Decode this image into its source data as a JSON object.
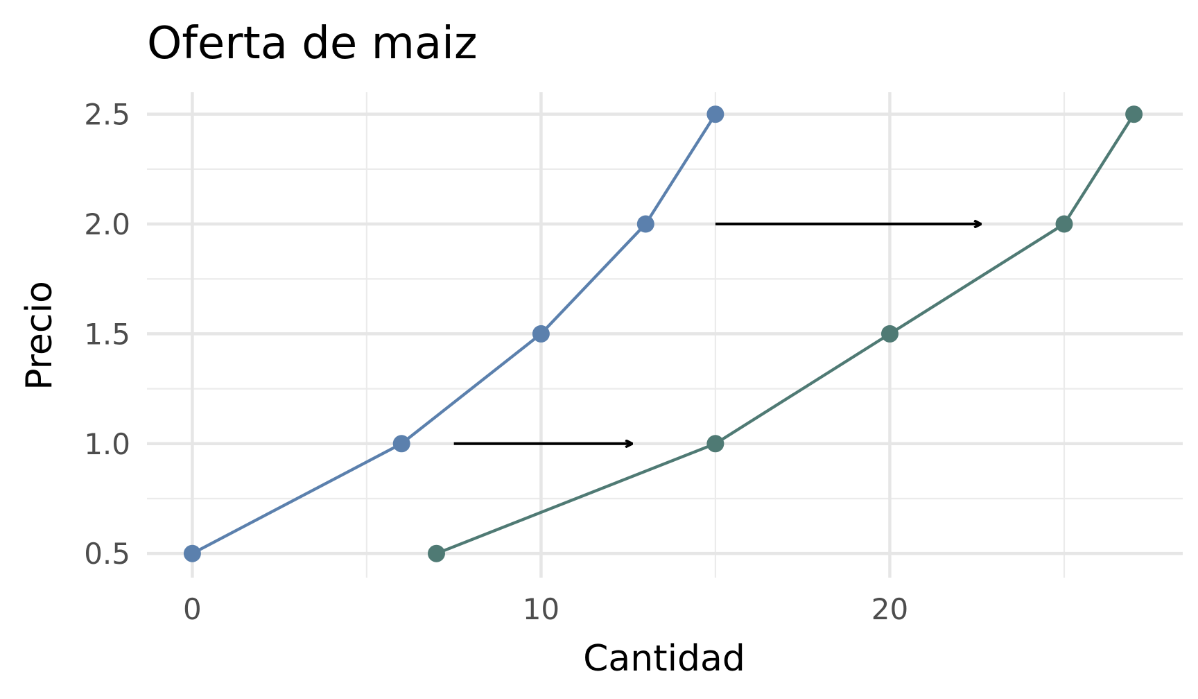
{
  "chart_data": {
    "type": "line",
    "title": "Oferta de maiz",
    "xlabel": "Cantidad",
    "ylabel": "Precio",
    "xlim": [
      -1.3,
      28.4
    ],
    "ylim": [
      0.39,
      2.6
    ],
    "x_major_ticks": [
      0,
      10,
      20
    ],
    "x_minor_ticks": [
      5,
      15,
      25
    ],
    "y_major_ticks": [
      0.5,
      1.0,
      1.5,
      2.0,
      2.5
    ],
    "y_minor_ticks": [
      0.75,
      1.25,
      1.75,
      2.25
    ],
    "x_tick_labels": [
      "0",
      "10",
      "20"
    ],
    "y_tick_labels": [
      "0.5",
      "1.0",
      "1.5",
      "2.0",
      "2.5"
    ],
    "grid": true,
    "legend": "none",
    "series": [
      {
        "color": "#5b80ad",
        "points": [
          {
            "x": 0,
            "y": 0.5
          },
          {
            "x": 6,
            "y": 1.0
          },
          {
            "x": 10,
            "y": 1.5
          },
          {
            "x": 13,
            "y": 2.0
          },
          {
            "x": 15,
            "y": 2.5
          }
        ]
      },
      {
        "color": "#4f7a74",
        "points": [
          {
            "x": 7,
            "y": 0.5
          },
          {
            "x": 15,
            "y": 1.0
          },
          {
            "x": 20,
            "y": 1.5
          },
          {
            "x": 25,
            "y": 2.0
          },
          {
            "x": 27,
            "y": 2.5
          }
        ]
      }
    ],
    "annotations": [
      {
        "type": "arrow",
        "x_start": 7.5,
        "x_end": 12.6,
        "y": 1.0,
        "color": "#000000"
      },
      {
        "type": "arrow",
        "x_start": 15,
        "x_end": 22.6,
        "y": 2.0,
        "color": "#000000"
      }
    ]
  }
}
